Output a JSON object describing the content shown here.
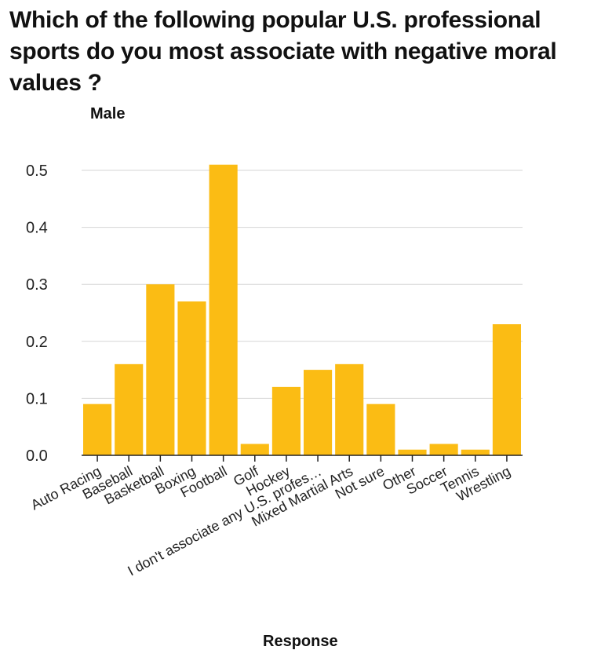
{
  "chart_data": {
    "type": "bar",
    "title": "Which of the following popular U.S. professional sports do you most associate with negative moral values ?",
    "ylabel": "Male",
    "xlabel": "Response",
    "categories": [
      "Auto Racing",
      "Baseball",
      "Basketball",
      "Boxing",
      "Football",
      "Golf",
      "Hockey",
      "I don't associate any U.S. profes…",
      "Mixed Martial Arts",
      "Not sure",
      "Other",
      "Soccer",
      "Tennis",
      "Wrestling"
    ],
    "values": [
      0.09,
      0.16,
      0.3,
      0.27,
      0.51,
      0.02,
      0.12,
      0.15,
      0.16,
      0.09,
      0.01,
      0.02,
      0.01,
      0.23
    ],
    "ylim": [
      0,
      0.5
    ],
    "yticks": [
      "0.0",
      "0.1",
      "0.2",
      "0.3",
      "0.4",
      "0.5"
    ],
    "grid": true,
    "bar_color": "#FBBC14"
  }
}
